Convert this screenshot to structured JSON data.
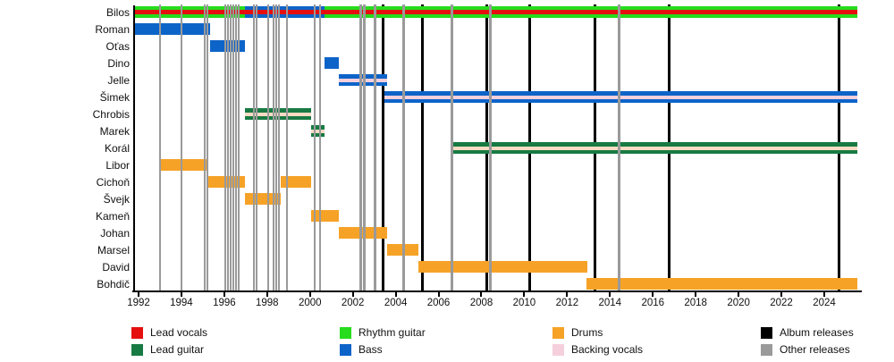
{
  "chart_data": {
    "type": "bar",
    "variant": "band-member-timeline",
    "title": "",
    "xlabel": "",
    "ylabel": "",
    "grid": false,
    "x_axis": {
      "range": [
        1991.8,
        2025.75
      ],
      "tick_years": [
        1992,
        1994,
        1996,
        1998,
        2000,
        2002,
        2004,
        2006,
        2008,
        2010,
        2012,
        2014,
        2016,
        2018,
        2020,
        2022,
        2024
      ]
    },
    "rows": [
      {
        "name": "Bilos",
        "bars": [
          {
            "start": 1991.8,
            "end": 1996.96,
            "role": "rhythm_guitar",
            "stripe": "lead_vocals"
          },
          {
            "start": 1996.96,
            "end": 2000.67,
            "role": "bass",
            "stripe": "lead_vocals"
          },
          {
            "start": 2000.67,
            "end": 2025.55,
            "role": "rhythm_guitar",
            "stripe": "lead_vocals"
          }
        ]
      },
      {
        "name": "Roman",
        "bars": [
          {
            "start": 1991.8,
            "end": 1995.33,
            "role": "bass"
          }
        ]
      },
      {
        "name": "Oťas",
        "bars": [
          {
            "start": 1995.33,
            "end": 1996.96,
            "role": "bass"
          }
        ]
      },
      {
        "name": "Dino",
        "bars": [
          {
            "start": 2000.67,
            "end": 2001.33,
            "role": "bass"
          }
        ]
      },
      {
        "name": "Jelle",
        "bars": [
          {
            "start": 2001.33,
            "end": 2003.58,
            "role": "bass",
            "stripe": "backing_vocals"
          }
        ]
      },
      {
        "name": "Šimek",
        "bars": [
          {
            "start": 2003.46,
            "end": 2025.55,
            "role": "bass",
            "stripe": "backing_vocals"
          }
        ]
      },
      {
        "name": "Chrobis",
        "bars": [
          {
            "start": 1996.96,
            "end": 2000.04,
            "role": "lead_guitar",
            "stripe": "backing_vocals"
          }
        ]
      },
      {
        "name": "Marek",
        "bars": [
          {
            "start": 2000.04,
            "end": 2000.67,
            "role": "lead_guitar",
            "stripe": "backing_vocals"
          }
        ]
      },
      {
        "name": "Korál",
        "bars": [
          {
            "start": 2006.62,
            "end": 2025.55,
            "role": "lead_guitar",
            "stripe": "backing_vocals"
          }
        ]
      },
      {
        "name": "Libor",
        "bars": [
          {
            "start": 1992.96,
            "end": 1995.21,
            "role": "drums"
          }
        ]
      },
      {
        "name": "Cichoň",
        "bars": [
          {
            "start": 1995.21,
            "end": 1996.96,
            "role": "drums"
          },
          {
            "start": 1998.63,
            "end": 2000.04,
            "role": "drums"
          }
        ]
      },
      {
        "name": "Švejk",
        "bars": [
          {
            "start": 1996.96,
            "end": 1998.63,
            "role": "drums"
          }
        ]
      },
      {
        "name": "Kameň",
        "bars": [
          {
            "start": 2000.04,
            "end": 2001.33,
            "role": "drums"
          }
        ]
      },
      {
        "name": "Johan",
        "bars": [
          {
            "start": 2001.33,
            "end": 2003.58,
            "role": "drums"
          }
        ]
      },
      {
        "name": "Marsel",
        "bars": [
          {
            "start": 2003.58,
            "end": 2005.04,
            "role": "drums"
          }
        ]
      },
      {
        "name": "David",
        "bars": [
          {
            "start": 2005.04,
            "end": 2012.96,
            "role": "drums"
          }
        ]
      },
      {
        "name": "Bohdič",
        "bars": [
          {
            "start": 2012.92,
            "end": 2025.55,
            "role": "drums"
          }
        ]
      }
    ],
    "album_release_years": [
      2003.42,
      2005.25,
      2008.25,
      2010.25,
      2013.29,
      2016.75,
      2024.67
    ],
    "other_release_years": [
      1993.0,
      1994.0,
      1995.08,
      1995.21,
      1996.04,
      1996.17,
      1996.29,
      1996.42,
      1996.54,
      1996.67,
      1997.37,
      1997.5,
      1998.04,
      1998.29,
      1998.42,
      1998.54,
      1998.92,
      2000.21,
      2000.46,
      2002.37,
      2002.54,
      2003.04,
      2004.37,
      2006.62,
      2008.42,
      2014.42
    ],
    "legend_columns": [
      [
        {
          "label": "Lead vocals",
          "role": "lead_vocals"
        },
        {
          "label": "Lead guitar",
          "role": "lead_guitar"
        }
      ],
      [
        {
          "label": "Rhythm guitar",
          "role": "rhythm_guitar"
        },
        {
          "label": "Bass",
          "role": "bass"
        }
      ],
      [
        {
          "label": "Drums",
          "role": "drums"
        },
        {
          "label": "Backing vocals",
          "role": "backing_vocals"
        }
      ],
      [
        {
          "label": "Album releases",
          "role": "album_releases"
        },
        {
          "label": "Other releases",
          "role": "other_releases"
        }
      ]
    ],
    "colors": {
      "lead_vocals": "#e60f0f",
      "lead_guitar": "#187a43",
      "rhythm_guitar": "#26dc1c",
      "bass": "#0d64c8",
      "drums": "#f6a227",
      "backing_vocals": "#f5d0dc",
      "backing_vocals_on_green": "#f8dcc4",
      "album_releases": "#000000",
      "other_releases": "#9a9a9a",
      "axis": "#000000"
    }
  }
}
